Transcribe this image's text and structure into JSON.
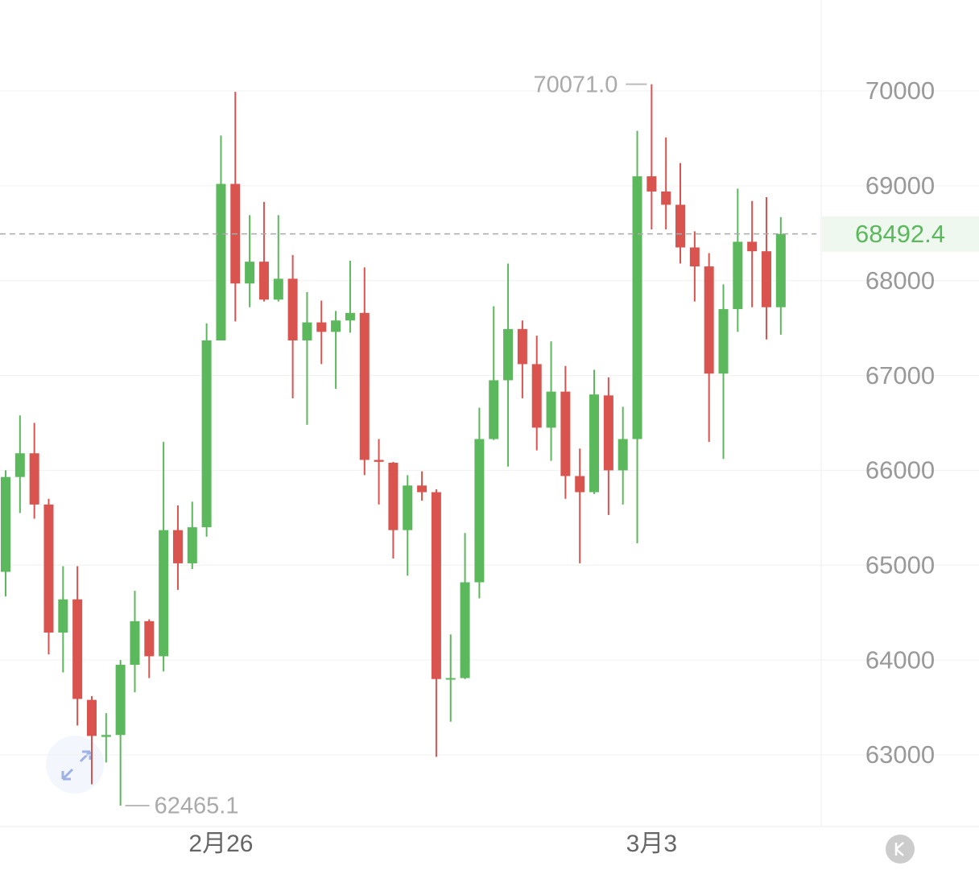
{
  "chart_data": {
    "type": "candlestick",
    "categories": [
      null,
      null,
      null,
      null,
      null,
      null,
      null,
      null,
      null,
      null,
      null,
      null,
      null,
      null,
      null,
      "2月26",
      null,
      null,
      null,
      null,
      null,
      null,
      null,
      null,
      null,
      null,
      null,
      null,
      null,
      null,
      null,
      null,
      null,
      null,
      null,
      null,
      null,
      null,
      null,
      null,
      null,
      null,
      null,
      null,
      null,
      "3月3",
      null,
      null,
      null,
      null,
      null,
      null,
      null,
      null,
      null
    ],
    "open": [
      64930,
      65930,
      66180,
      65640,
      64290,
      64640,
      63580,
      63190,
      63210,
      63950,
      64410,
      64040,
      65370,
      65020,
      65400,
      67370,
      69020,
      67970,
      68200,
      67800,
      68020,
      67370,
      67560,
      67460,
      67580,
      67660,
      66110,
      66080,
      65370,
      65840,
      65770,
      63800,
      63810,
      64820,
      66330,
      66950,
      67490,
      67120,
      66450,
      66830,
      65940,
      65770,
      66790,
      66000,
      66330,
      69100,
      68940,
      68800,
      68350,
      68150,
      67020,
      67700,
      68410,
      68310,
      67720
    ],
    "high": [
      66000,
      66580,
      66500,
      65700,
      64990,
      64990,
      63620,
      63440,
      64000,
      64730,
      64430,
      66300,
      65630,
      65670,
      67550,
      69530,
      69990,
      68690,
      68830,
      68690,
      68270,
      67880,
      67790,
      67680,
      68210,
      68140,
      66330,
      66090,
      65950,
      65990,
      65800,
      64270,
      65340,
      66660,
      67730,
      68180,
      67580,
      67420,
      67360,
      67100,
      66230,
      67060,
      66980,
      66670,
      69580,
      70071,
      69510,
      69240,
      68520,
      68290,
      67960,
      68970,
      68840,
      68880,
      68670
    ],
    "low": [
      64670,
      65550,
      65490,
      64060,
      63870,
      63310,
      62690,
      62920,
      62465.1,
      63660,
      63810,
      63880,
      64740,
      64960,
      65300,
      67370,
      67570,
      67720,
      67780,
      67780,
      66760,
      66480,
      67120,
      66860,
      67450,
      65950,
      65640,
      65070,
      64890,
      65680,
      62980,
      63350,
      63800,
      64650,
      66320,
      66040,
      66760,
      66210,
      66100,
      65700,
      65020,
      65750,
      65530,
      65640,
      65230,
      68540,
      68540,
      68180,
      67780,
      66300,
      66120,
      67460,
      67720,
      67380,
      67430
    ],
    "close": [
      65930,
      66180,
      65640,
      64290,
      64640,
      63590,
      63200,
      63210,
      63950,
      64410,
      64040,
      65370,
      65020,
      65400,
      67370,
      69020,
      67970,
      68200,
      67800,
      68020,
      67370,
      67560,
      67460,
      67580,
      67660,
      66110,
      66090,
      65370,
      65840,
      65770,
      63800,
      63810,
      64820,
      66330,
      66950,
      67490,
      67120,
      66450,
      66830,
      65940,
      65770,
      66800,
      66000,
      66330,
      69100,
      68940,
      68800,
      68350,
      68150,
      67020,
      67700,
      68410,
      68310,
      67720,
      68492.4
    ],
    "up_color": "#5cb85c",
    "down_color": "#d9534f",
    "max_label": "70071.0",
    "min_label": "62465.1",
    "last_price": 68492.4,
    "ylim": [
      62450,
      70950
    ],
    "yticks": [
      63000,
      64000,
      65000,
      66000,
      67000,
      68000,
      69000,
      70000
    ],
    "grid": true
  }
}
